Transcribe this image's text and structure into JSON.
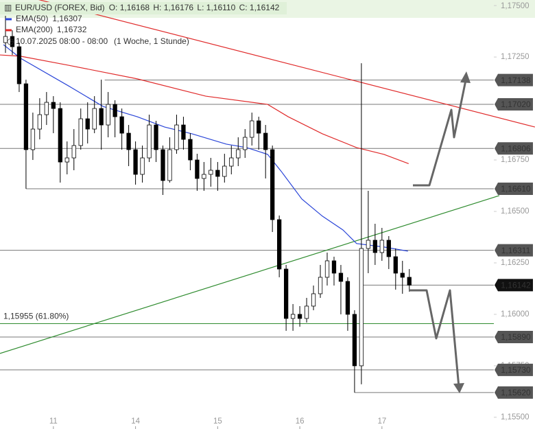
{
  "chart_data": {
    "type": "candlestick",
    "title": "EUR/USD (FOREX, Bid)",
    "quote": [
      "O: 1,16168",
      "H: 1,16176",
      "L: 1,16110",
      "C: 1,16142"
    ],
    "subtitle": "10.07.2025 08:00 - 08:00",
    "period": "(1 Woche, 1 Stunde)",
    "xlim": [
      8.4,
      152.7
    ],
    "ylim": [
      1.15443,
      1.17527
    ],
    "xticks": [
      {
        "value": 24,
        "label": "11"
      },
      {
        "value": 48,
        "label": "14"
      },
      {
        "value": 72,
        "label": "15"
      },
      {
        "value": 96,
        "label": "16"
      },
      {
        "value": 120,
        "label": "17"
      }
    ],
    "yticks": [
      {
        "value": 1.175,
        "label": "1,17500"
      },
      {
        "value": 1.1725,
        "label": "1,17250"
      },
      {
        "value": 1.1675,
        "label": "1,16750"
      },
      {
        "value": 1.165,
        "label": "1,16500"
      },
      {
        "value": 1.1625,
        "label": "1,16250"
      },
      {
        "value": 1.16,
        "label": "1,16000"
      },
      {
        "value": 1.1575,
        "label": "1,15750"
      },
      {
        "value": 1.155,
        "label": "1,15500"
      }
    ],
    "up_color": "#ffffff",
    "down_color": "#000000",
    "x": [
      10,
      12,
      14,
      16,
      18,
      20,
      22,
      24,
      26,
      28,
      30,
      32,
      34,
      36,
      38,
      40,
      42,
      44,
      46,
      48,
      50,
      52,
      54,
      56,
      58,
      60,
      62,
      64,
      66,
      68,
      70,
      72,
      74,
      76,
      78,
      80,
      82,
      84,
      86,
      88,
      90,
      92,
      94,
      96,
      98,
      100,
      102,
      104,
      106,
      108,
      110,
      112,
      114,
      116,
      118,
      120,
      122,
      124,
      126,
      128
    ],
    "open": [
      1.1732,
      1.1735,
      1.173,
      1.1712,
      1.168,
      1.169,
      1.1697,
      1.1703,
      1.17,
      1.1674,
      1.1676,
      1.1682,
      1.1695,
      1.169,
      1.17,
      1.1692,
      1.1702,
      1.1696,
      1.1688,
      1.168,
      1.1668,
      1.1676,
      1.1692,
      1.168,
      1.1665,
      1.168,
      1.1692,
      1.1685,
      1.1675,
      1.1666,
      1.1668,
      1.167,
      1.1667,
      1.1672,
      1.1676,
      1.168,
      1.1686,
      1.1694,
      1.1688,
      1.168,
      1.1646,
      1.1622,
      1.1598,
      1.16,
      1.1598,
      1.1604,
      1.161,
      1.1618,
      1.1626,
      1.162,
      1.1616,
      1.16,
      1.1575,
      1.1632,
      1.1636,
      1.163,
      1.1636,
      1.1628,
      1.162,
      1.1618
    ],
    "high": [
      1.1745,
      1.1738,
      1.1732,
      1.1714,
      1.1698,
      1.1705,
      1.1708,
      1.1706,
      1.1703,
      1.1684,
      1.169,
      1.17,
      1.1703,
      1.1706,
      1.1714,
      1.1708,
      1.1704,
      1.17,
      1.1692,
      1.1684,
      1.1682,
      1.1697,
      1.1694,
      1.1682,
      1.1686,
      1.1697,
      1.1696,
      1.1688,
      1.1678,
      1.1674,
      1.1676,
      1.1674,
      1.1678,
      1.1682,
      1.1686,
      1.169,
      1.1698,
      1.1696,
      1.1692,
      1.1682,
      1.1648,
      1.1624,
      1.1605,
      1.1604,
      1.1608,
      1.1614,
      1.1624,
      1.163,
      1.1628,
      1.1624,
      1.1618,
      1.1602,
      1.1722,
      1.166,
      1.1644,
      1.1642,
      1.1638,
      1.1632,
      1.1626,
      1.1622
    ],
    "low": [
      1.1727,
      1.1726,
      1.1708,
      1.1661,
      1.1675,
      1.1685,
      1.1692,
      1.1688,
      1.1664,
      1.1668,
      1.167,
      1.168,
      1.1683,
      1.1688,
      1.168,
      1.1686,
      1.1686,
      1.168,
      1.1672,
      1.1663,
      1.1664,
      1.1674,
      1.1674,
      1.1658,
      1.1664,
      1.1678,
      1.168,
      1.167,
      1.166,
      1.166,
      1.1662,
      1.166,
      1.1664,
      1.1668,
      1.1672,
      1.1676,
      1.1682,
      1.168,
      1.1666,
      1.164,
      1.1618,
      1.1592,
      1.1592,
      1.1594,
      1.1596,
      1.1602,
      1.1608,
      1.1614,
      1.1614,
      1.16,
      1.1592,
      1.1562,
      1.1566,
      1.162,
      1.1624,
      1.1626,
      1.1622,
      1.1612,
      1.161,
      1.1611
    ],
    "close": [
      1.1735,
      1.173,
      1.1712,
      1.168,
      1.169,
      1.1697,
      1.1703,
      1.17,
      1.1674,
      1.1676,
      1.1682,
      1.1695,
      1.169,
      1.17,
      1.1692,
      1.1702,
      1.1696,
      1.1688,
      1.168,
      1.1668,
      1.1676,
      1.1692,
      1.168,
      1.1665,
      1.168,
      1.1692,
      1.1685,
      1.1675,
      1.1666,
      1.1668,
      1.167,
      1.1667,
      1.1672,
      1.1676,
      1.168,
      1.1686,
      1.1694,
      1.1688,
      1.168,
      1.1646,
      1.1622,
      1.1598,
      1.16,
      1.1598,
      1.1604,
      1.161,
      1.1618,
      1.1626,
      1.162,
      1.1616,
      1.16,
      1.1575,
      1.1632,
      1.1636,
      1.163,
      1.1636,
      1.1628,
      1.162,
      1.1618,
      1.16142
    ],
    "series": [
      {
        "name": "EMA(50)",
        "legend_value": "1,16307",
        "color": "#2a45d8",
        "x": [
          9.4,
          14.4,
          28.4,
          38.5,
          48.5,
          56.5,
          64.5,
          74.5,
          80.5,
          86.6,
          90.6,
          96.6,
          102.6,
          108.6,
          112.6,
          120.6,
          127.6
        ],
        "values": [
          1.1731,
          1.17244,
          1.1711,
          1.1701,
          1.1696,
          1.1691,
          1.16877,
          1.16827,
          1.1681,
          1.16777,
          1.16694,
          1.1656,
          1.16477,
          1.1641,
          1.16344,
          1.16327,
          1.16307
        ]
      },
      {
        "name": "EMA(200)",
        "legend_value": "1,16732",
        "color": "#e02a2a",
        "x": [
          8.4,
          14.4,
          28.4,
          48.5,
          68.5,
          86.6,
          92.6,
          102.6,
          112.6,
          120.6,
          127.8
        ],
        "values": [
          1.1726,
          1.17254,
          1.1721,
          1.17144,
          1.1706,
          1.1702,
          1.1696,
          1.16877,
          1.1681,
          1.16777,
          1.16732
        ]
      }
    ],
    "trendlines": [
      {
        "color": "#e02a2a",
        "x": [
          8.4,
          164.7
        ],
        "values": [
          1.17577,
          1.1691
        ]
      },
      {
        "color": "#2e8b2e",
        "x": [
          8.4,
          154.3
        ],
        "values": [
          1.1581,
          1.16577
        ]
      }
    ],
    "levels": [
      {
        "value": 1.17138,
        "label": "1,17138",
        "from": 39,
        "color": "#777",
        "box_color": "#555"
      },
      {
        "value": 1.1702,
        "label": "1,17020",
        "color": "#777",
        "box_color": "#555"
      },
      {
        "value": 1.16806,
        "label": "1,16806",
        "color": "#777",
        "box_color": "#555"
      },
      {
        "value": 1.1661,
        "label": "1,16610",
        "from": 16,
        "color": "#777",
        "box_color": "#555"
      },
      {
        "value": 1.16311,
        "label": "1,16311",
        "color": "#777",
        "box_color": "#555"
      },
      {
        "value": 1.16142,
        "label": "1,16142",
        "from": 114,
        "color": "#777",
        "box_color": "#111"
      },
      {
        "value": 1.15955,
        "label": "1,15955 (61.80%)",
        "color": "#2e8b2e"
      },
      {
        "value": 1.1589,
        "label": "1,15890",
        "color": "#777",
        "box_color": "#555"
      },
      {
        "value": 1.1573,
        "label": "1,15730",
        "color": "#777",
        "box_color": "#555"
      },
      {
        "value": 1.1562,
        "label": "1,15620",
        "from": 112,
        "color": "#777",
        "box_color": "#555"
      }
    ]
  }
}
